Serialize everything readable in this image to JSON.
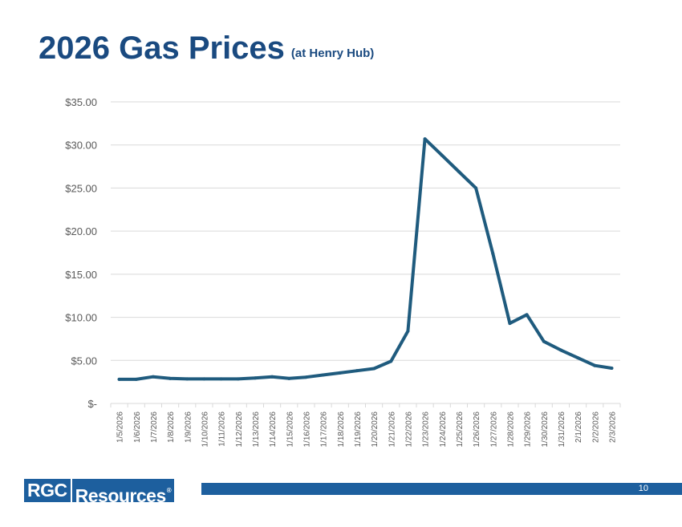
{
  "slide": {
    "title": "2026 Gas Prices",
    "subtitle": "(at Henry Hub)",
    "logo_part1": "RGC",
    "logo_part2": "Resources",
    "logo_mark": "®",
    "page_number": "10"
  },
  "colors": {
    "title": "#1a4a80",
    "line": "#1f5b7e",
    "grid": "#d9d9d9",
    "axis_text": "#595959",
    "footer": "#1d5f9e"
  },
  "chart_data": {
    "type": "line",
    "title": "",
    "xlabel": "",
    "ylabel": "",
    "ylim": [
      0,
      35
    ],
    "grid": true,
    "yticks": [
      {
        "value": 0,
        "label": "$-"
      },
      {
        "value": 5,
        "label": "$5.00"
      },
      {
        "value": 10,
        "label": "$10.00"
      },
      {
        "value": 15,
        "label": "$15.00"
      },
      {
        "value": 20,
        "label": "$20.00"
      },
      {
        "value": 25,
        "label": "$25.00"
      },
      {
        "value": 30,
        "label": "$30.00"
      },
      {
        "value": 35,
        "label": "$35.00"
      }
    ],
    "categories": [
      "1/5/2026",
      "1/6/2026",
      "1/7/2026",
      "1/8/2026",
      "1/9/2026",
      "1/10/2026",
      "1/11/2026",
      "1/12/2026",
      "1/13/2026",
      "1/14/2026",
      "1/15/2026",
      "1/16/2026",
      "1/17/2026",
      "1/18/2026",
      "1/19/2026",
      "1/20/2026",
      "1/21/2026",
      "1/22/2026",
      "1/23/2026",
      "1/24/2026",
      "1/25/2026",
      "1/26/2026",
      "1/27/2026",
      "1/28/2026",
      "1/29/2026",
      "1/30/2026",
      "1/31/2026",
      "2/1/2026",
      "2/2/2026",
      "2/3/2026"
    ],
    "series": [
      {
        "name": "Henry Hub",
        "values": [
          2.8,
          2.8,
          3.1,
          2.9,
          2.85,
          2.85,
          2.85,
          2.85,
          2.95,
          3.1,
          2.9,
          3.05,
          3.3,
          3.55,
          3.8,
          4.05,
          4.9,
          8.4,
          30.7,
          28.8,
          26.9,
          25.0,
          17.4,
          9.3,
          10.3,
          7.2,
          6.2,
          5.3,
          4.4,
          4.1
        ]
      }
    ]
  }
}
